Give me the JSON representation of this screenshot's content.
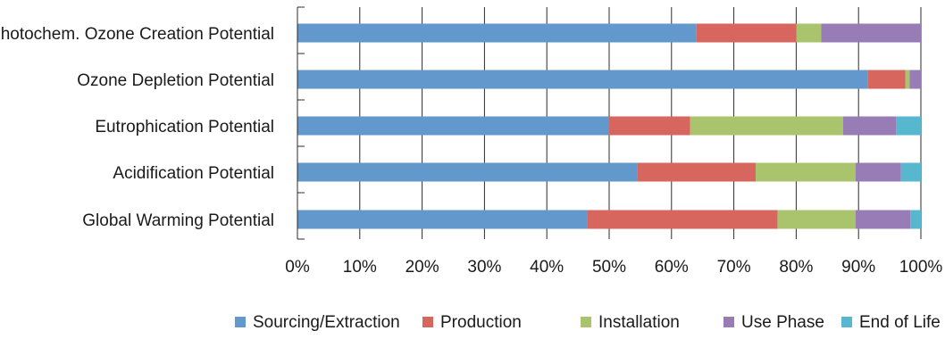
{
  "chart_data": {
    "type": "bar",
    "orientation": "horizontal",
    "stacked": true,
    "normalized": true,
    "categories": [
      "Photochem. Ozone Creation Potential",
      "Ozone Depletion Potential",
      "Eutrophication Potential",
      "Acidification Potential",
      "Global Warming Potential"
    ],
    "series": [
      {
        "name": "Sourcing/Extraction",
        "color": "#6298cb",
        "values": [
          64.0,
          91.5,
          50.0,
          54.5,
          46.5
        ]
      },
      {
        "name": "Production",
        "color": "#d6665e",
        "values": [
          16.0,
          6.0,
          13.0,
          19.0,
          30.5
        ]
      },
      {
        "name": "Installation",
        "color": "#a9c46d",
        "values": [
          4.0,
          0.7,
          24.5,
          16.0,
          12.5
        ]
      },
      {
        "name": "Use Phase",
        "color": "#977cb6",
        "values": [
          16.0,
          1.8,
          8.5,
          7.3,
          8.8
        ]
      },
      {
        "name": "End of Life",
        "color": "#57b7ce",
        "values": [
          0.0,
          0.0,
          4.0,
          3.2,
          1.7
        ]
      }
    ],
    "xlim": [
      0,
      100
    ],
    "x_ticks": [
      "0%",
      "10%",
      "20%",
      "30%",
      "40%",
      "50%",
      "60%",
      "70%",
      "80%",
      "90%",
      "100%"
    ],
    "grid": "vertical",
    "legend_position": "bottom",
    "title": "",
    "xlabel": "",
    "ylabel": ""
  }
}
